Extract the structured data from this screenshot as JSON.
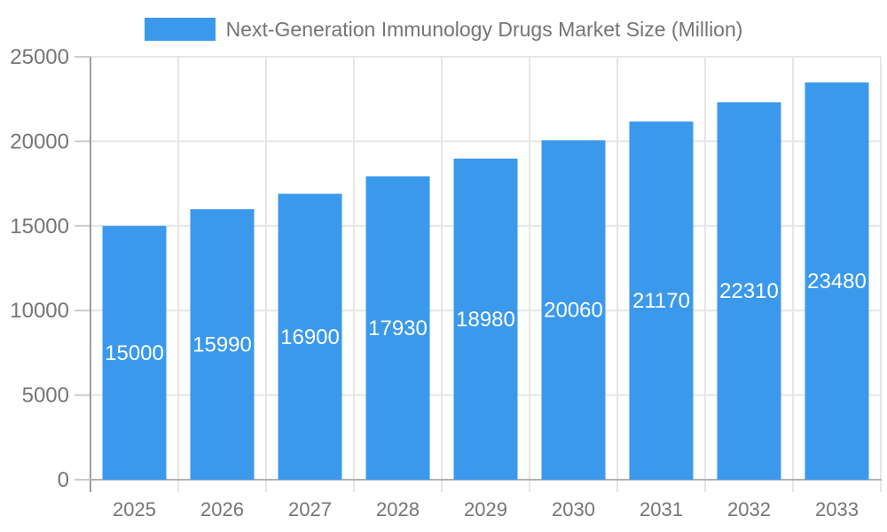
{
  "chart_data": {
    "type": "bar",
    "title": "Next-Generation Immunology Drugs Market Size (Million)",
    "categories": [
      "2025",
      "2026",
      "2027",
      "2028",
      "2029",
      "2030",
      "2031",
      "2032",
      "2033"
    ],
    "values": [
      15000,
      15990,
      16900,
      17930,
      18980,
      20060,
      21170,
      22310,
      23480
    ],
    "series_name": "Next-Generation Immunology Drugs Market Size (Million)",
    "xlabel": "",
    "ylabel": "",
    "ylim": [
      0,
      25000
    ],
    "yticks": [
      0,
      5000,
      10000,
      15000,
      20000,
      25000
    ],
    "grid": true,
    "legend_position": "top",
    "data_labels_visible": true,
    "colors": {
      "bar": "#3b99ec",
      "data_label": "#ffffff",
      "axis_text": "#757575",
      "legend_text": "#757575",
      "gridline": "#e6e6e6",
      "tick": "#cccccc",
      "y_axis_line": "#9e9e9e",
      "x_axis_line": "#b3b3b3",
      "background": "#ffffff"
    }
  }
}
